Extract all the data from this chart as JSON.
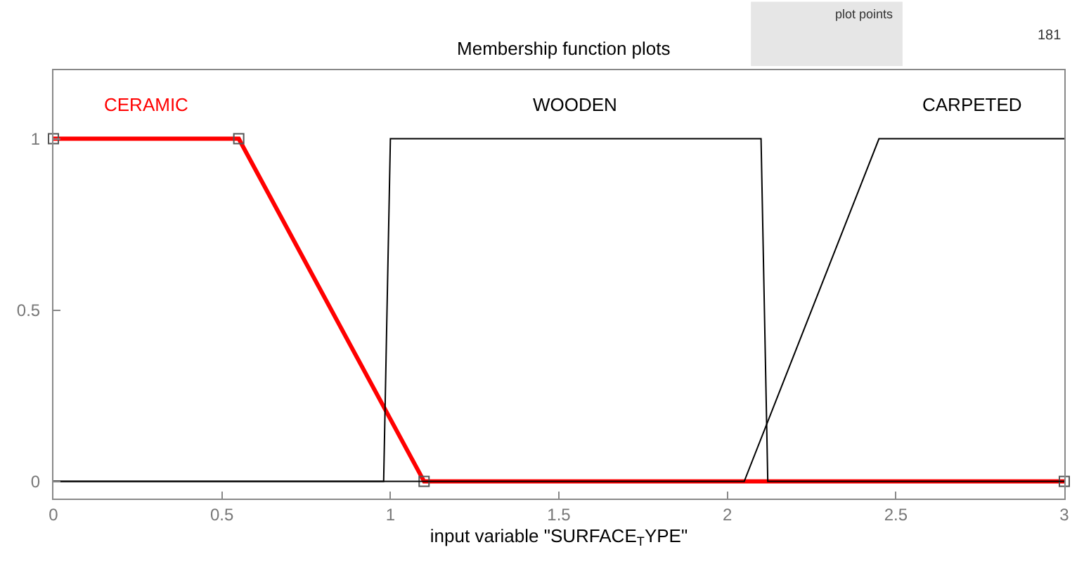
{
  "chart_data": {
    "type": "line",
    "title": "Membership function plots",
    "xlabel": "input variable \"SURFACE$_{T}$YPE\"",
    "annotations": [
      "plot points",
      "181"
    ],
    "series": [
      {
        "name": "CERAMIC",
        "color": "#ff0000",
        "x": [
          0,
          0.55,
          1.1,
          3
        ],
        "values": [
          1,
          1,
          0,
          0
        ],
        "marker": "square"
      },
      {
        "name": "WOODEN",
        "color": "#000000",
        "x": [
          0,
          0.98,
          1.0,
          2.1,
          2.12,
          3
        ],
        "values": [
          0,
          0,
          1,
          1,
          0,
          0
        ]
      },
      {
        "name": "CARPETED",
        "color": "#000000",
        "x": [
          0,
          2.05,
          2.45,
          3
        ],
        "values": [
          0,
          0,
          1,
          1
        ]
      }
    ],
    "xlim": [
      0,
      3
    ],
    "xticks": [
      0,
      0.5,
      1,
      1.5,
      2,
      2.5,
      3
    ],
    "ylim": [
      -0.05,
      1.2
    ],
    "yticks": [
      0,
      0.5,
      1
    ],
    "legend": false,
    "line_style": "solid"
  }
}
